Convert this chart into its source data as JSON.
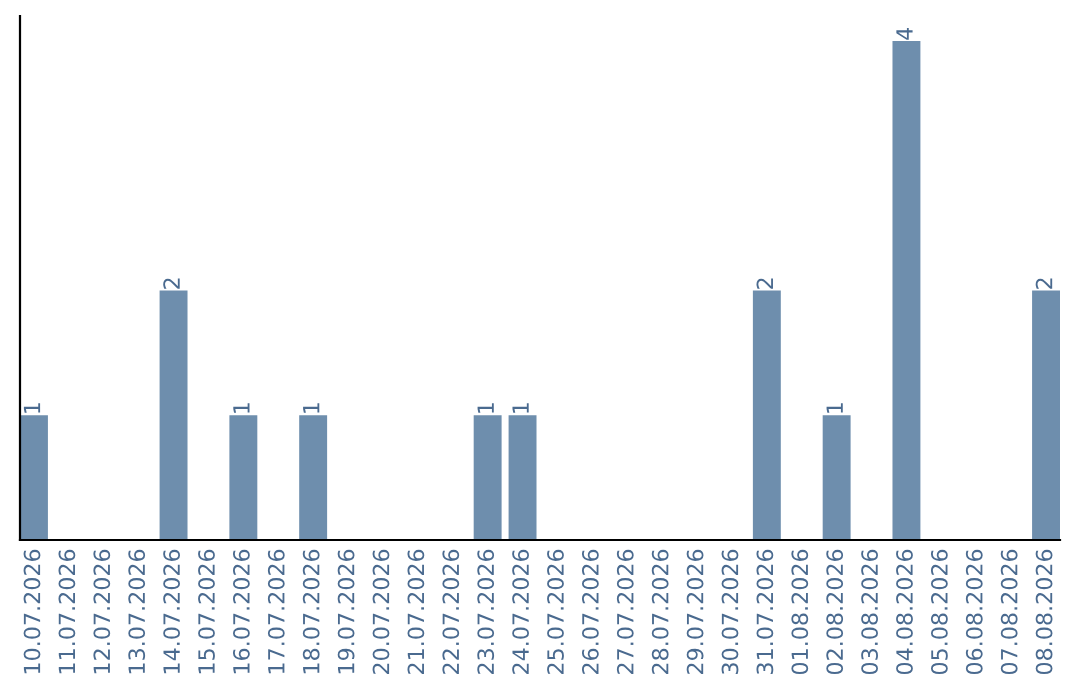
{
  "chart_data": {
    "type": "bar",
    "categories": [
      "10.07.2026",
      "11.07.2026",
      "12.07.2026",
      "13.07.2026",
      "14.07.2026",
      "15.07.2026",
      "16.07.2026",
      "17.07.2026",
      "18.07.2026",
      "19.07.2026",
      "20.07.2026",
      "21.07.2026",
      "22.07.2026",
      "23.07.2026",
      "24.07.2026",
      "25.07.2026",
      "26.07.2026",
      "27.07.2026",
      "28.07.2026",
      "29.07.2026",
      "30.07.2026",
      "31.07.2026",
      "01.08.2026",
      "02.08.2026",
      "03.08.2026",
      "04.08.2026",
      "05.08.2026",
      "06.08.2026",
      "07.08.2026",
      "08.08.2026"
    ],
    "values": [
      1,
      0,
      0,
      0,
      2,
      0,
      1,
      0,
      1,
      0,
      0,
      0,
      0,
      1,
      1,
      0,
      0,
      0,
      0,
      0,
      0,
      2,
      0,
      1,
      0,
      4,
      0,
      0,
      0,
      2
    ],
    "value_labels": [
      "1",
      null,
      null,
      null,
      "2",
      null,
      "1",
      null,
      "1",
      null,
      null,
      null,
      null,
      "1",
      "1",
      null,
      null,
      null,
      null,
      null,
      null,
      "2",
      null,
      "1",
      null,
      "4",
      null,
      null,
      null,
      "2"
    ],
    "color": "#6e8ead",
    "tick_labels": "x",
    "grid": false,
    "legend": false
  }
}
